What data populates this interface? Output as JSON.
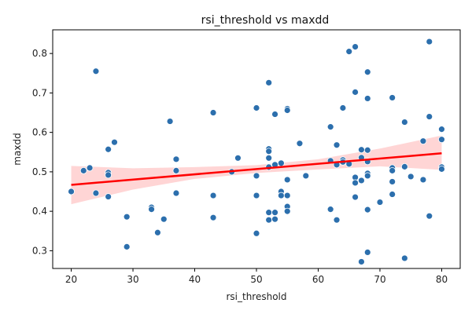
{
  "chart_data": {
    "type": "scatter",
    "title": "rsi_threshold vs maxdd",
    "xlabel": "rsi_threshold",
    "ylabel": "maxdd",
    "xlim": [
      17,
      83
    ],
    "ylim": [
      0.255,
      0.86
    ],
    "xticks": [
      20,
      30,
      40,
      50,
      60,
      70,
      80
    ],
    "yticks": [
      0.3,
      0.4,
      0.5,
      0.6,
      0.7,
      0.8
    ],
    "grid": false,
    "colors": {
      "points": "#2c6fad",
      "regression": "#ff0000",
      "band": "#ffb3b3"
    },
    "regression": {
      "x": [
        20,
        80
      ],
      "y": [
        0.467,
        0.547
      ],
      "ci_x": [
        20,
        30,
        40,
        50,
        60,
        70,
        80
      ],
      "ci_lower": [
        0.418,
        0.455,
        0.482,
        0.497,
        0.506,
        0.514,
        0.505
      ],
      "ci_upper": [
        0.515,
        0.509,
        0.512,
        0.517,
        0.532,
        0.559,
        0.592
      ]
    },
    "points": [
      {
        "x": 20,
        "y": 0.45
      },
      {
        "x": 22,
        "y": 0.503
      },
      {
        "x": 23,
        "y": 0.51
      },
      {
        "x": 24,
        "y": 0.755
      },
      {
        "x": 24,
        "y": 0.446
      },
      {
        "x": 26,
        "y": 0.557
      },
      {
        "x": 26,
        "y": 0.498
      },
      {
        "x": 26,
        "y": 0.492
      },
      {
        "x": 26,
        "y": 0.437
      },
      {
        "x": 27,
        "y": 0.575
      },
      {
        "x": 29,
        "y": 0.386
      },
      {
        "x": 29,
        "y": 0.31
      },
      {
        "x": 33,
        "y": 0.41
      },
      {
        "x": 33,
        "y": 0.405
      },
      {
        "x": 34,
        "y": 0.346
      },
      {
        "x": 35,
        "y": 0.38
      },
      {
        "x": 36,
        "y": 0.628
      },
      {
        "x": 37,
        "y": 0.532
      },
      {
        "x": 37,
        "y": 0.503
      },
      {
        "x": 37,
        "y": 0.446
      },
      {
        "x": 43,
        "y": 0.65
      },
      {
        "x": 43,
        "y": 0.44
      },
      {
        "x": 43,
        "y": 0.384
      },
      {
        "x": 46,
        "y": 0.5
      },
      {
        "x": 47,
        "y": 0.535
      },
      {
        "x": 50,
        "y": 0.662
      },
      {
        "x": 50,
        "y": 0.49
      },
      {
        "x": 50,
        "y": 0.44
      },
      {
        "x": 50,
        "y": 0.344
      },
      {
        "x": 52,
        "y": 0.726
      },
      {
        "x": 52,
        "y": 0.558
      },
      {
        "x": 52,
        "y": 0.552
      },
      {
        "x": 52,
        "y": 0.535
      },
      {
        "x": 52,
        "y": 0.512
      },
      {
        "x": 52,
        "y": 0.397
      },
      {
        "x": 52,
        "y": 0.378
      },
      {
        "x": 53,
        "y": 0.646
      },
      {
        "x": 53,
        "y": 0.518
      },
      {
        "x": 53,
        "y": 0.397
      },
      {
        "x": 53,
        "y": 0.38
      },
      {
        "x": 54,
        "y": 0.522
      },
      {
        "x": 54,
        "y": 0.45
      },
      {
        "x": 54,
        "y": 0.44
      },
      {
        "x": 55,
        "y": 0.66
      },
      {
        "x": 55,
        "y": 0.656
      },
      {
        "x": 55,
        "y": 0.48
      },
      {
        "x": 55,
        "y": 0.44
      },
      {
        "x": 55,
        "y": 0.412
      },
      {
        "x": 55,
        "y": 0.4
      },
      {
        "x": 57,
        "y": 0.572
      },
      {
        "x": 58,
        "y": 0.49
      },
      {
        "x": 62,
        "y": 0.614
      },
      {
        "x": 62,
        "y": 0.528
      },
      {
        "x": 62,
        "y": 0.405
      },
      {
        "x": 63,
        "y": 0.568
      },
      {
        "x": 63,
        "y": 0.518
      },
      {
        "x": 63,
        "y": 0.378
      },
      {
        "x": 64,
        "y": 0.662
      },
      {
        "x": 64,
        "y": 0.53
      },
      {
        "x": 64,
        "y": 0.525
      },
      {
        "x": 65,
        "y": 0.805
      },
      {
        "x": 65,
        "y": 0.52
      },
      {
        "x": 66,
        "y": 0.817
      },
      {
        "x": 66,
        "y": 0.702
      },
      {
        "x": 66,
        "y": 0.486
      },
      {
        "x": 66,
        "y": 0.472
      },
      {
        "x": 66,
        "y": 0.436
      },
      {
        "x": 67,
        "y": 0.556
      },
      {
        "x": 67,
        "y": 0.536
      },
      {
        "x": 67,
        "y": 0.478
      },
      {
        "x": 67,
        "y": 0.272
      },
      {
        "x": 68,
        "y": 0.753
      },
      {
        "x": 68,
        "y": 0.686
      },
      {
        "x": 68,
        "y": 0.555
      },
      {
        "x": 68,
        "y": 0.526
      },
      {
        "x": 68,
        "y": 0.496
      },
      {
        "x": 68,
        "y": 0.49
      },
      {
        "x": 68,
        "y": 0.404
      },
      {
        "x": 68,
        "y": 0.296
      },
      {
        "x": 70,
        "y": 0.423
      },
      {
        "x": 72,
        "y": 0.688
      },
      {
        "x": 72,
        "y": 0.51
      },
      {
        "x": 72,
        "y": 0.503
      },
      {
        "x": 72,
        "y": 0.475
      },
      {
        "x": 72,
        "y": 0.443
      },
      {
        "x": 74,
        "y": 0.626
      },
      {
        "x": 74,
        "y": 0.513
      },
      {
        "x": 74,
        "y": 0.281
      },
      {
        "x": 75,
        "y": 0.488
      },
      {
        "x": 77,
        "y": 0.578
      },
      {
        "x": 77,
        "y": 0.48
      },
      {
        "x": 78,
        "y": 0.83
      },
      {
        "x": 78,
        "y": 0.64
      },
      {
        "x": 78,
        "y": 0.388
      },
      {
        "x": 80,
        "y": 0.608
      },
      {
        "x": 80,
        "y": 0.582
      },
      {
        "x": 80,
        "y": 0.512
      },
      {
        "x": 80,
        "y": 0.507
      }
    ]
  }
}
